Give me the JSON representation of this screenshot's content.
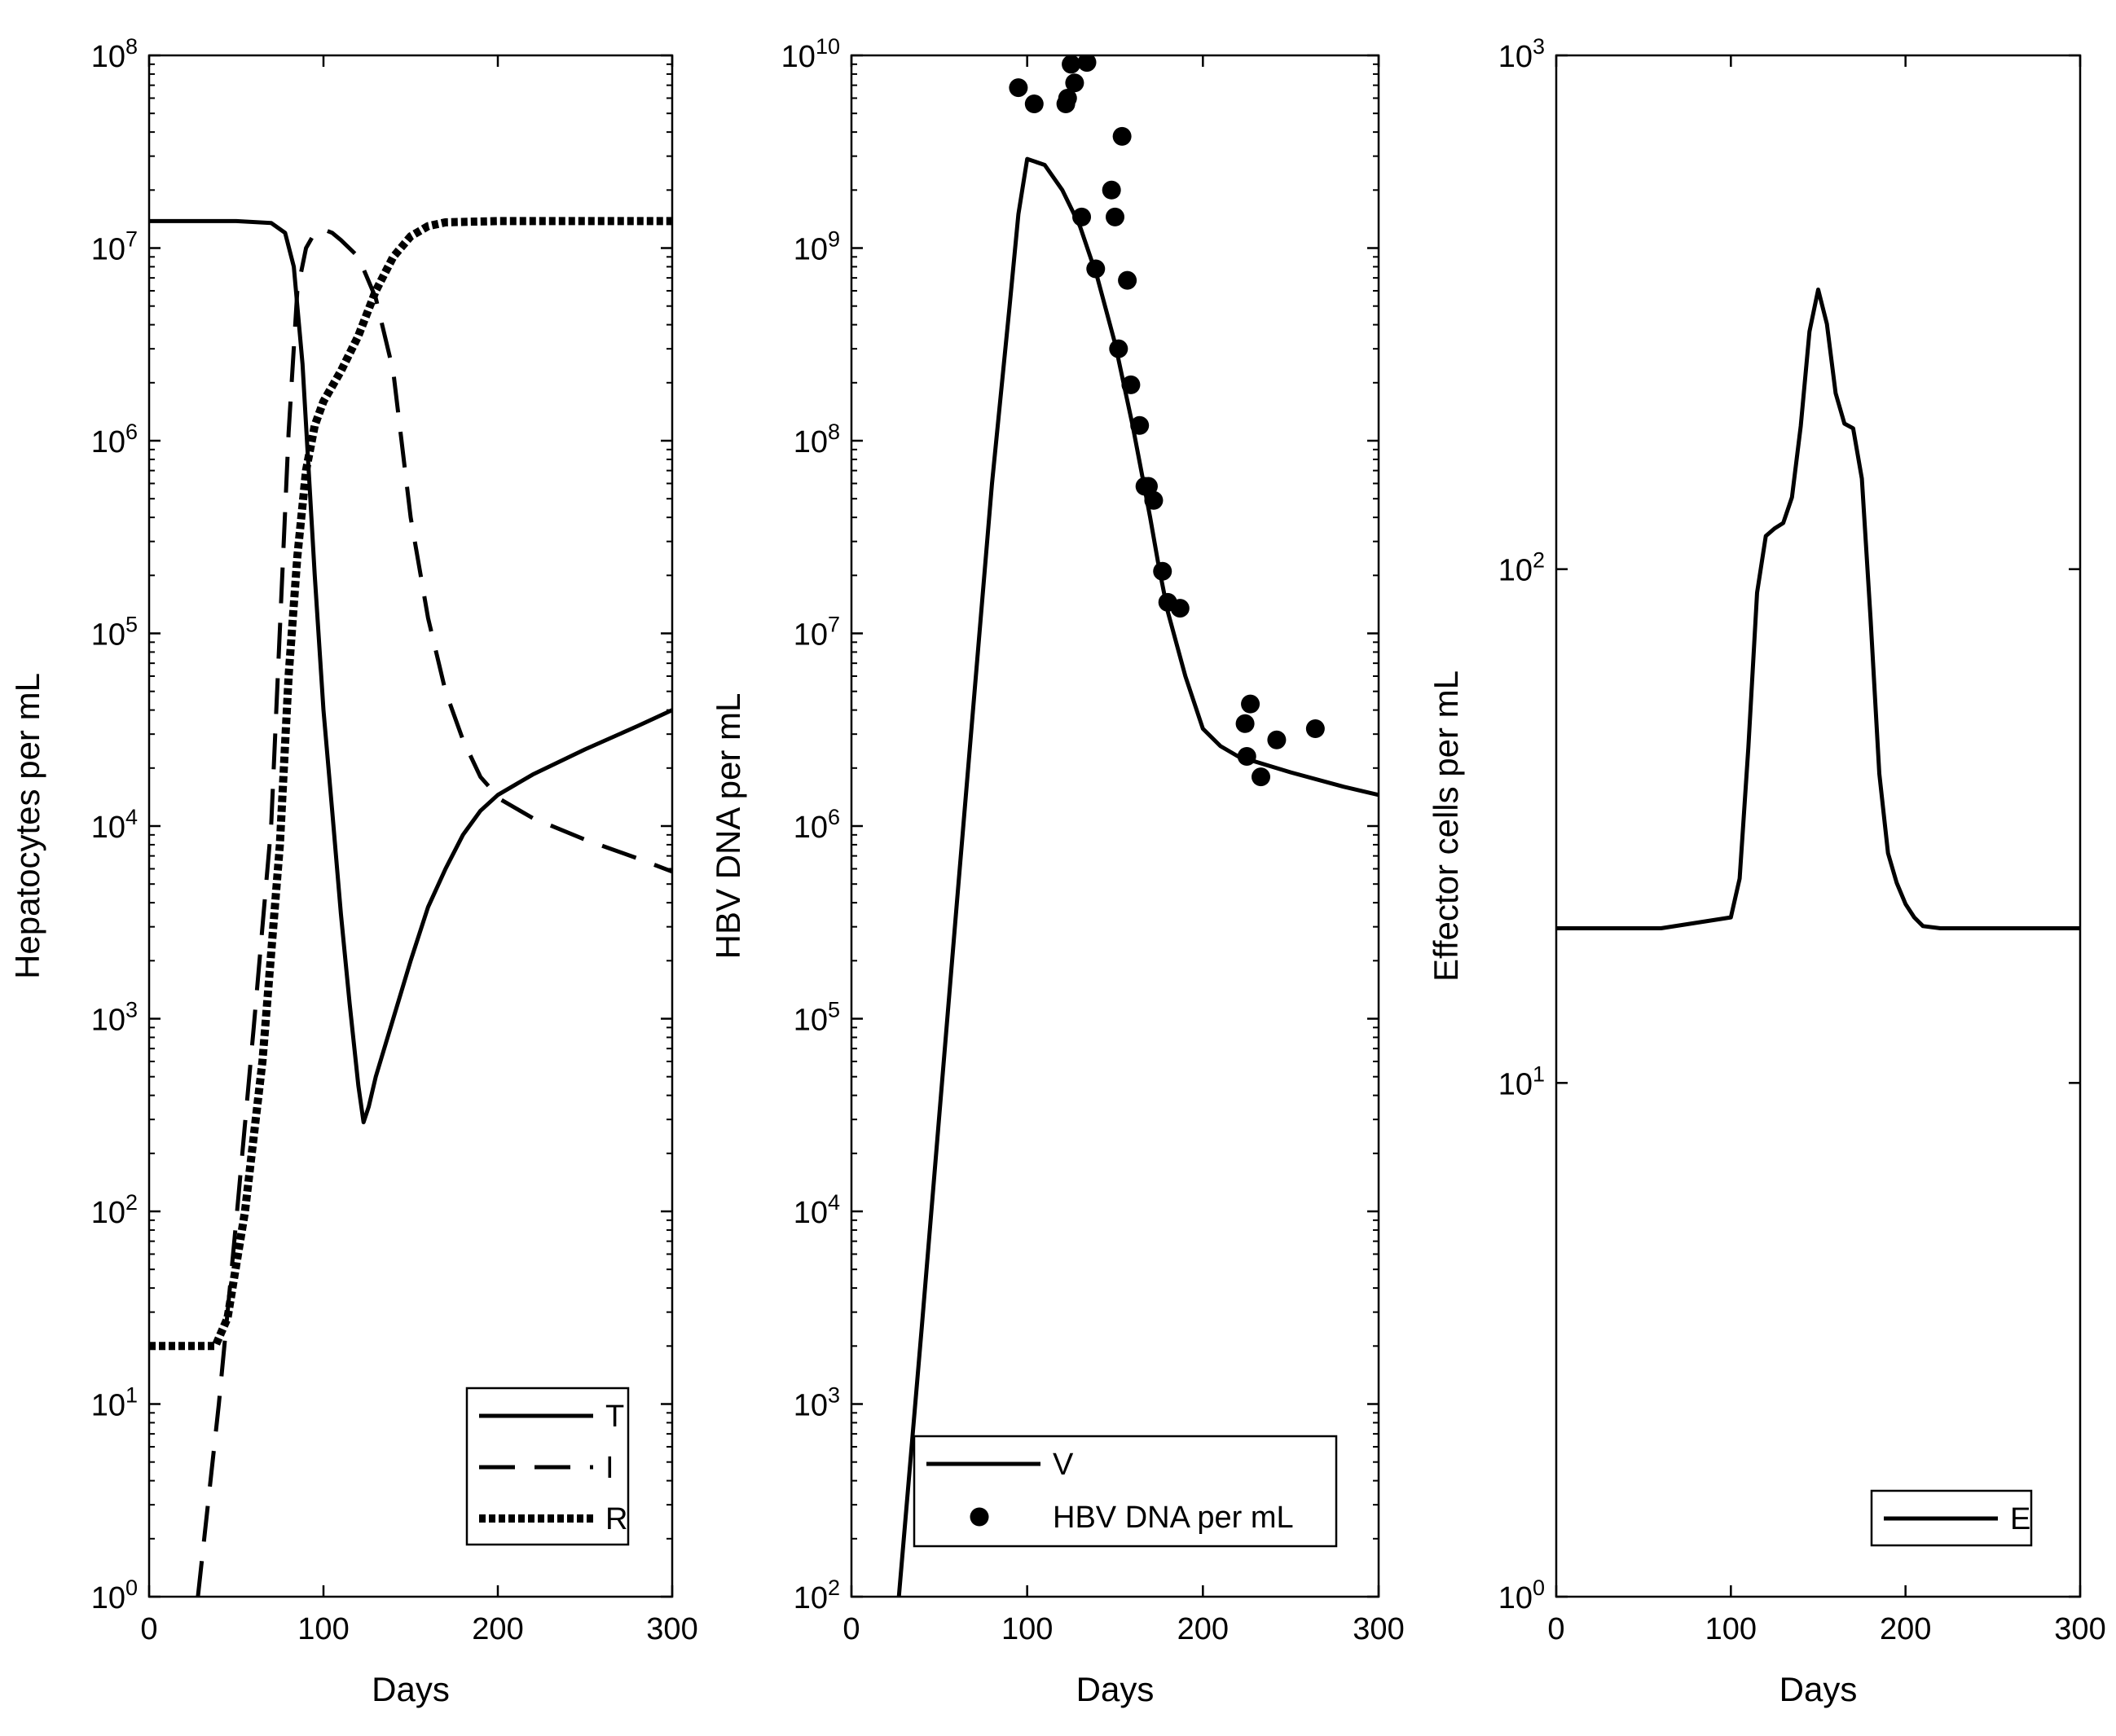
{
  "chart_data": [
    {
      "type": "line",
      "xlabel": "Days",
      "ylabel": "Hepatocytes per mL",
      "xlim": [
        0,
        300
      ],
      "xticks": [
        "0",
        "100",
        "200",
        "300"
      ],
      "yscale": "log",
      "ylim_exp": [
        0,
        8
      ],
      "yticks": [
        {
          "base": "10",
          "exp": "0"
        },
        {
          "base": "10",
          "exp": "1"
        },
        {
          "base": "10",
          "exp": "2"
        },
        {
          "base": "10",
          "exp": "3"
        },
        {
          "base": "10",
          "exp": "4"
        },
        {
          "base": "10",
          "exp": "5"
        },
        {
          "base": "10",
          "exp": "6"
        },
        {
          "base": "10",
          "exp": "7"
        },
        {
          "base": "10",
          "exp": "8"
        }
      ],
      "legend_position": "bottom-right",
      "series": [
        {
          "name": "T",
          "style": "solid",
          "x": [
            0,
            50,
            70,
            78,
            83,
            88,
            95,
            100,
            105,
            110,
            115,
            120,
            123,
            126,
            130,
            140,
            150,
            160,
            170,
            180,
            190,
            200,
            220,
            250,
            280,
            300
          ],
          "y": [
            13800000.0,
            13800000.0,
            13500000.0,
            12000000.0,
            8000000.0,
            2500000.0,
            200000.0,
            40000.0,
            12000.0,
            3500.0,
            1200.0,
            450,
            290,
            350,
            500,
            1000,
            2000,
            3800,
            6000,
            9000,
            12000,
            14500,
            18500,
            25000,
            33000,
            40000
          ]
        },
        {
          "name": "I",
          "style": "dashed",
          "x": [
            28,
            40,
            50,
            60,
            70,
            80,
            85,
            90,
            95,
            100,
            105,
            110,
            120,
            130,
            140,
            150,
            160,
            170,
            180,
            190,
            195,
            200,
            220,
            250,
            280,
            300
          ],
          "y": [
            1,
            10,
            90,
            900,
            10000.0,
            1100000.0,
            6000000.0,
            10000000.0,
            12000000.0,
            12500000.0,
            12000000.0,
            11000000.0,
            9000000.0,
            5500000.0,
            2300000.0,
            400000.0,
            120000.0,
            50000.0,
            28000.0,
            18000.0,
            16000.0,
            14000.0,
            11000.0,
            8500.0,
            6800.0,
            5800.0
          ]
        },
        {
          "name": "R",
          "style": "dotted",
          "x": [
            0,
            38,
            45,
            55,
            65,
            75,
            80,
            85,
            90,
            95,
            100,
            110,
            120,
            130,
            140,
            150,
            160,
            170,
            200,
            250,
            300
          ],
          "y": [
            20,
            20,
            28,
            100,
            600,
            8000,
            60000.0,
            250000.0,
            700000.0,
            1200000.0,
            1600000.0,
            2300000.0,
            3500000.0,
            6000000.0,
            9000000.0,
            11500000.0,
            13000000.0,
            13600000.0,
            13800000.0,
            13800000.0,
            13800000.0
          ]
        }
      ]
    },
    {
      "type": "line",
      "xlabel": "Days",
      "ylabel": "HBV DNA per mL",
      "xlim": [
        0,
        300
      ],
      "xticks": [
        "0",
        "100",
        "200",
        "300"
      ],
      "yscale": "log",
      "ylim_exp": [
        2,
        10
      ],
      "yticks": [
        {
          "base": "10",
          "exp": "2"
        },
        {
          "base": "10",
          "exp": "3"
        },
        {
          "base": "10",
          "exp": "4"
        },
        {
          "base": "10",
          "exp": "5"
        },
        {
          "base": "10",
          "exp": "6"
        },
        {
          "base": "10",
          "exp": "7"
        },
        {
          "base": "10",
          "exp": "8"
        },
        {
          "base": "10",
          "exp": "9"
        },
        {
          "base": "10",
          "exp": "10"
        }
      ],
      "legend_position": "bottom-right",
      "series": [
        {
          "name": "V",
          "style": "solid",
          "x": [
            27,
            40,
            60,
            80,
            90,
            95,
            100,
            110,
            120,
            130,
            140,
            150,
            160,
            170,
            175,
            180,
            190,
            200,
            210,
            220,
            250,
            280,
            300
          ],
          "y": [
            100,
            2500.0,
            400000.0,
            60000000.0,
            500000000.0,
            1500000000.0,
            2900000000.0,
            2700000000.0,
            2000000000.0,
            1300000000.0,
            700000000.0,
            320000000.0,
            120000000.0,
            40000000.0,
            22000000.0,
            13000000.0,
            6000000.0,
            3200000.0,
            2600000.0,
            2300000.0,
            1900000.0,
            1600000.0,
            1450000.0
          ]
        },
        {
          "name": "HBV DNA per mL",
          "style": "markers",
          "x": [
            95,
            104,
            122,
            123,
            125,
            127,
            131,
            134,
            139,
            148,
            150,
            152,
            154,
            157,
            159,
            164,
            167,
            169,
            172,
            177,
            180,
            187,
            224,
            225,
            227,
            233,
            242,
            264
          ],
          "y": [
            6800000000.0,
            5600000000.0,
            5600000000.0,
            6000000000.0,
            9000000000.0,
            7200000000.0,
            1450000000.0,
            9200000000.0,
            780000000.0,
            2000000000.0,
            1450000000.0,
            300000000.0,
            3800000000.0,
            680000000.0,
            195000000.0,
            120000000.0,
            58000000.0,
            58000000.0,
            49000000.0,
            21000000.0,
            14500000.0,
            13500000.0,
            3400000.0,
            2300000.0,
            4300000.0,
            1800000.0,
            2800000.0,
            3200000.0
          ]
        }
      ]
    },
    {
      "type": "line",
      "xlabel": "Days",
      "ylabel": "Effector cells per mL",
      "xlim": [
        0,
        300
      ],
      "xticks": [
        "0",
        "100",
        "200",
        "300"
      ],
      "yscale": "log",
      "ylim_exp": [
        0,
        3
      ],
      "yticks": [
        {
          "base": "10",
          "exp": "0"
        },
        {
          "base": "10",
          "exp": "1"
        },
        {
          "base": "10",
          "exp": "2"
        },
        {
          "base": "10",
          "exp": "3"
        }
      ],
      "legend_position": "bottom-right",
      "series": [
        {
          "name": "E",
          "style": "solid",
          "x": [
            0,
            60,
            100,
            105,
            110,
            115,
            120,
            125,
            130,
            135,
            140,
            145,
            150,
            155,
            160,
            165,
            170,
            175,
            180,
            185,
            190,
            195,
            200,
            205,
            210,
            220,
            230,
            240,
            260,
            300
          ],
          "y": [
            20,
            20,
            21,
            25,
            45,
            90,
            116,
            120,
            123,
            138,
            190,
            290,
            350,
            300,
            220,
            192,
            188,
            150,
            80,
            40,
            28,
            24.5,
            22.3,
            21,
            20.2,
            20,
            20,
            20,
            20,
            20
          ]
        }
      ]
    }
  ]
}
